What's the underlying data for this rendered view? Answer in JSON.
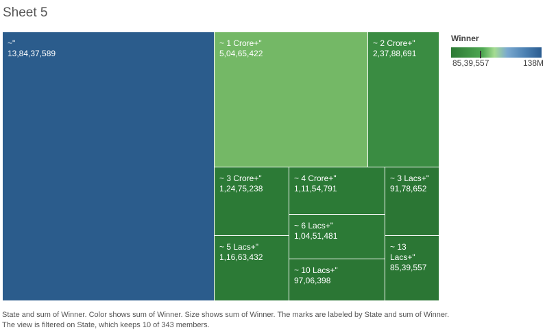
{
  "sheet_title": "Sheet 5",
  "chart_data": {
    "type": "treemap",
    "measure": "sum of Winner",
    "dimension": "State",
    "items": [
      {
        "state": "~\"",
        "value": 138437589,
        "display": "13,84,37,589",
        "color": "#2b5c8c"
      },
      {
        "state": "~ 1 Crore+\"",
        "value": 50465422,
        "display": "5,04,65,422",
        "color": "#74b866"
      },
      {
        "state": "~ 2 Crore+\"",
        "value": 23788691,
        "display": "2,37,88,691",
        "color": "#3a8c42"
      },
      {
        "state": "~ 3 Crore+\"",
        "value": 12475238,
        "display": "1,24,75,238",
        "color": "#2c7a36"
      },
      {
        "state": "~ 4 Crore+\"",
        "value": 11154791,
        "display": "1,11,54,791",
        "color": "#2c7a36"
      },
      {
        "state": "~ 3 Lacs+\"",
        "value": 9178652,
        "display": "91,78,652",
        "color": "#2b7634"
      },
      {
        "state": "~ 6 Lacs+\"",
        "value": 10451481,
        "display": "1,04,51,481",
        "color": "#2c7a36"
      },
      {
        "state": "~ 5 Lacs+\"",
        "value": 11663432,
        "display": "1,16,63,432",
        "color": "#2c7a36"
      },
      {
        "state": "~ 13\nLacs+\"",
        "value": 8539557,
        "display": "85,39,557",
        "color": "#2b7634"
      },
      {
        "state": "~ 10 Lacs+\"",
        "value": 9706398,
        "display": "97,06,398",
        "color": "#2b7634"
      }
    ]
  },
  "legend": {
    "title": "Winner",
    "min_label": "85,39,557",
    "max_label": "138M",
    "min_value": 8539557,
    "max_value": 138437589,
    "marker_value": 50465422
  },
  "caption": "State and sum of Winner.  Color shows sum of Winner.  Size shows sum of Winner.  The marks are labeled by State and sum of Winner. The view is filtered on State, which keeps 10 of 343 members."
}
